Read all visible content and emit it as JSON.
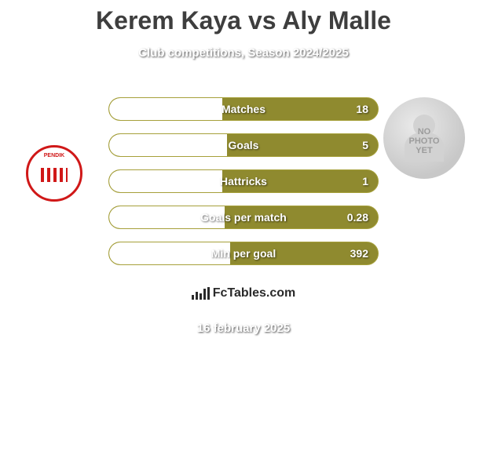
{
  "title": "Kerem Kaya vs Aly Malle",
  "subtitle": "Club competitions, Season 2024/2025",
  "date": "16 february 2025",
  "watermark_text": "FcTables.com",
  "left_player": {
    "club_badge_text": "PENDIK"
  },
  "right_player": {
    "no_photo_line1": "NO",
    "no_photo_line2": "PHOTO",
    "no_photo_line3": "YET"
  },
  "colors": {
    "bar_fill": "#8f8a2f",
    "bar_border": "#a6a03a",
    "title_color": "#3e3e3e",
    "text_shadow_white": "#ffffff",
    "badge_red": "#d01818"
  },
  "stats": [
    {
      "label": "Matches",
      "value": "18",
      "left_pct": 42
    },
    {
      "label": "Goals",
      "value": "5",
      "left_pct": 44
    },
    {
      "label": "Hattricks",
      "value": "1",
      "left_pct": 42
    },
    {
      "label": "Goals per match",
      "value": "0.28",
      "left_pct": 43
    },
    {
      "label": "Min per goal",
      "value": "392",
      "left_pct": 45
    }
  ]
}
